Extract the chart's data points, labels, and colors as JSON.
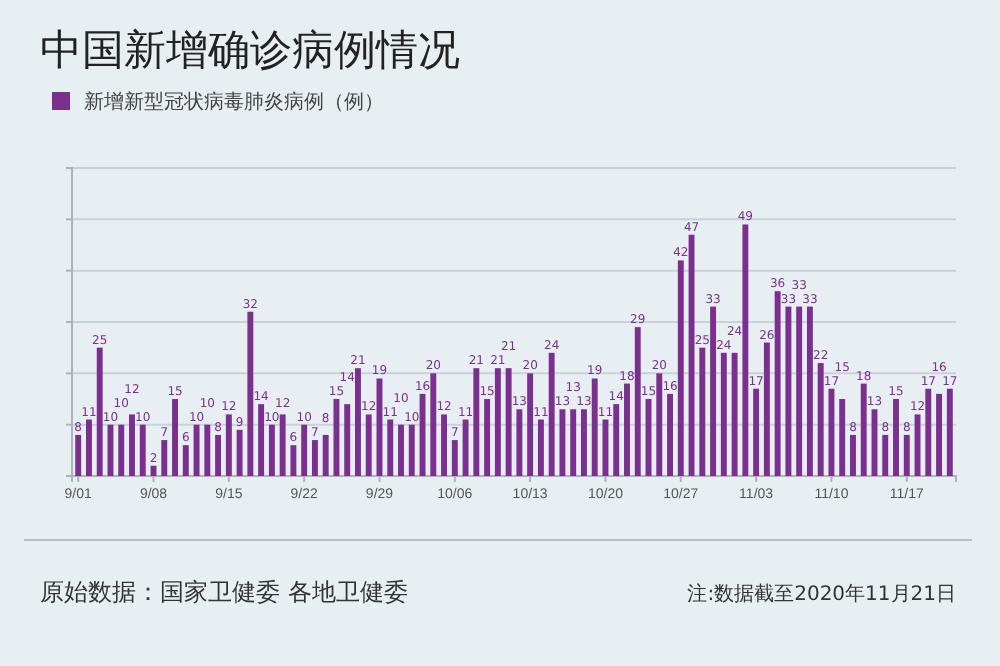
{
  "chart_data": {
    "type": "bar",
    "title": "中国新增确诊病例情况",
    "categories": [
      "9/01",
      null,
      null,
      null,
      null,
      null,
      null,
      "9/08",
      null,
      null,
      null,
      null,
      null,
      null,
      "9/15",
      null,
      null,
      null,
      null,
      null,
      null,
      "9/22",
      null,
      null,
      null,
      null,
      null,
      null,
      "9/29",
      null,
      null,
      null,
      null,
      null,
      null,
      "10/06",
      null,
      null,
      null,
      null,
      null,
      null,
      "10/13",
      null,
      null,
      null,
      null,
      null,
      null,
      "10/20",
      null,
      null,
      null,
      null,
      null,
      null,
      "10/27",
      null,
      null,
      null,
      null,
      null,
      null,
      "11/03",
      null,
      null,
      null,
      null,
      null,
      null,
      "11/10",
      null,
      null,
      null,
      null,
      null,
      null,
      "11/17",
      null,
      null,
      null,
      null
    ],
    "series": [
      {
        "name": "新增新型冠状病毒肺炎病例（例）",
        "color": "#7b2f8f",
        "values": [
          8,
          11,
          25,
          10,
          10,
          12,
          10,
          2,
          7,
          15,
          6,
          10,
          10,
          8,
          12,
          9,
          32,
          14,
          10,
          12,
          6,
          10,
          7,
          8,
          15,
          14,
          21,
          12,
          19,
          11,
          10,
          10,
          16,
          20,
          12,
          7,
          11,
          21,
          15,
          21,
          21,
          13,
          20,
          11,
          24,
          13,
          13,
          13,
          19,
          11,
          14,
          18,
          29,
          15,
          20,
          16,
          42,
          47,
          25,
          33,
          24,
          24,
          49,
          17,
          26,
          36,
          33,
          33,
          33,
          22,
          17,
          15,
          8,
          18,
          13,
          8,
          15,
          8,
          12,
          17,
          16,
          17
        ]
      }
    ],
    "ylim": [
      0,
      60
    ],
    "yticks": [
      {
        "value": 0,
        "label": null
      },
      {
        "value": 10,
        "label": null
      },
      {
        "value": 20,
        "label": null
      },
      {
        "value": 30,
        "label": null
      },
      {
        "value": 40,
        "label": null
      },
      {
        "value": 50,
        "label": null
      },
      {
        "value": 60,
        "label": null
      }
    ],
    "tick_labels": "x",
    "grid": "y",
    "legend": "top left",
    "data_labels": true,
    "annotations": [
      "原始数据：国家卫健委 各地卫健委",
      "注:数据截至2020年11月21日"
    ]
  }
}
